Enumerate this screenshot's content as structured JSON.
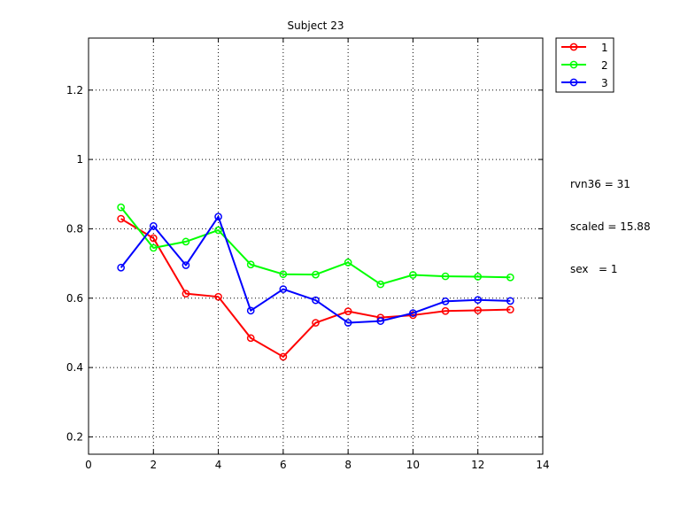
{
  "chart_data": {
    "type": "line",
    "title": "Subject 23",
    "xlabel": "",
    "ylabel": "",
    "xlim": [
      0,
      14
    ],
    "ylim": [
      0.15,
      1.35
    ],
    "xticks": [
      0,
      2,
      4,
      6,
      8,
      10,
      12,
      14
    ],
    "yticks": [
      0.2,
      0.4,
      0.6,
      0.8,
      1,
      1.2
    ],
    "x_tick_labels": [
      "0",
      "2",
      "4",
      "6",
      "8",
      "10",
      "12",
      "14"
    ],
    "y_tick_labels": [
      "0.2",
      "0.4",
      "0.6",
      "0.8",
      "1",
      "1.2"
    ],
    "grid": true,
    "legend_position": "outside-top-right",
    "x": [
      1,
      2,
      3,
      4,
      5,
      6,
      7,
      8,
      9,
      10,
      11,
      12,
      13
    ],
    "series": [
      {
        "name": "1",
        "color": "#ff0000",
        "values": [
          0.829,
          0.773,
          0.613,
          0.604,
          0.485,
          0.431,
          0.529,
          0.562,
          0.544,
          0.551,
          0.563,
          0.565,
          0.567
        ]
      },
      {
        "name": "2",
        "color": "#00ff00",
        "values": [
          0.862,
          0.745,
          0.763,
          0.796,
          0.697,
          0.669,
          0.668,
          0.703,
          0.64,
          0.667,
          0.663,
          0.662,
          0.66
        ]
      },
      {
        "name": "3",
        "color": "#0000ff",
        "values": [
          0.688,
          0.808,
          0.695,
          0.835,
          0.564,
          0.626,
          0.594,
          0.529,
          0.534,
          0.557,
          0.591,
          0.595,
          0.592
        ]
      }
    ]
  },
  "annotations": {
    "line1": "rvn36 = 31",
    "line2": "scaled = 15.88",
    "line3": "sex   = 1"
  }
}
